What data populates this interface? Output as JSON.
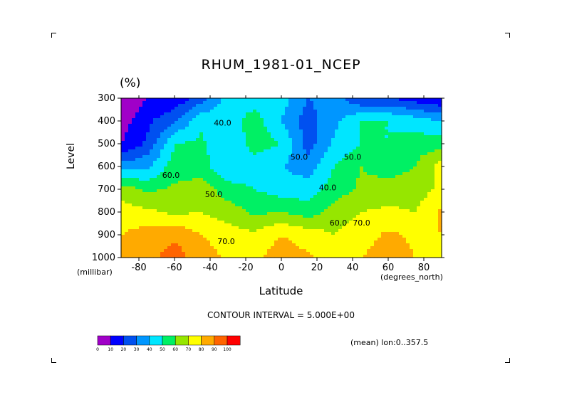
{
  "title": "RHUM_1981-01_NCEP",
  "units": "(%)",
  "contour_note": "CONTOUR INTERVAL = 5.000E+00",
  "mean_note": "(mean) lon:0..357.5",
  "chart_data": {
    "type": "heatmap",
    "title": "RHUM_1981-01_NCEP",
    "xlabel": "Latitude",
    "xlabel_units": "(degrees_north)",
    "ylabel": "Level",
    "ylabel_units": "(millibar)",
    "xlim": [
      -90,
      90
    ],
    "ylim": [
      1000,
      300
    ],
    "x_ticks": [
      -80,
      -60,
      -40,
      -20,
      0,
      20,
      40,
      60,
      80
    ],
    "y_ticks": [
      300,
      400,
      500,
      600,
      700,
      800,
      900,
      1000
    ],
    "x_tick_labels": [
      "-80",
      "-60",
      "-40",
      "-20",
      "0",
      "20",
      "40",
      "60",
      "80"
    ],
    "y_tick_labels": [
      "300",
      "400",
      "500",
      "600",
      "700",
      "800",
      "900",
      "1000"
    ],
    "contour_interval": 5,
    "contour_labels": [
      {
        "text": "40.0",
        "lat": -33,
        "level": 420
      },
      {
        "text": "50.0",
        "lat": 10,
        "level": 570
      },
      {
        "text": "50.0",
        "lat": 40,
        "level": 570
      },
      {
        "text": "60.0",
        "lat": -62,
        "level": 650
      },
      {
        "text": "50.0",
        "lat": -38,
        "level": 735
      },
      {
        "text": "40.0",
        "lat": 26,
        "level": 705
      },
      {
        "text": "60.0",
        "lat": 32,
        "level": 860
      },
      {
        "text": "70.0",
        "lat": 45,
        "level": 860
      },
      {
        "text": "70.0",
        "lat": -31,
        "level": 940
      }
    ],
    "x": [
      -90,
      -75,
      -60,
      -45,
      -30,
      -15,
      0,
      15,
      30,
      45,
      60,
      75,
      90
    ],
    "y": [
      300,
      400,
      500,
      600,
      700,
      800,
      900,
      1000
    ],
    "z": [
      [
        0,
        10,
        12,
        25,
        45,
        45,
        45,
        30,
        35,
        20,
        20,
        15,
        10
      ],
      [
        5,
        18,
        28,
        48,
        45,
        55,
        40,
        25,
        38,
        50,
        50,
        45,
        40
      ],
      [
        10,
        22,
        50,
        52,
        40,
        55,
        50,
        25,
        42,
        50,
        50,
        55,
        55
      ],
      [
        35,
        38,
        55,
        55,
        40,
        45,
        40,
        35,
        50,
        60,
        55,
        60,
        75
      ],
      [
        65,
        58,
        62,
        65,
        55,
        50,
        45,
        45,
        55,
        62,
        65,
        65,
        72
      ],
      [
        75,
        72,
        68,
        70,
        65,
        58,
        60,
        55,
        65,
        70,
        72,
        70,
        82
      ],
      [
        80,
        85,
        88,
        80,
        75,
        72,
        80,
        75,
        70,
        75,
        82,
        78,
        80
      ],
      [
        82,
        86,
        95,
        85,
        78,
        78,
        85,
        82,
        72,
        80,
        86,
        80,
        70
      ]
    ],
    "colorbar": {
      "ticks": [
        "0",
        "10",
        "20",
        "30",
        "40",
        "50",
        "60",
        "70",
        "80",
        "90",
        "100"
      ],
      "colors": [
        "#a000c8",
        "#0000ff",
        "#0050f0",
        "#0096ff",
        "#00e6ff",
        "#00f064",
        "#96e600",
        "#ffff00",
        "#ffaa00",
        "#ff6400",
        "#ff0000"
      ]
    }
  }
}
